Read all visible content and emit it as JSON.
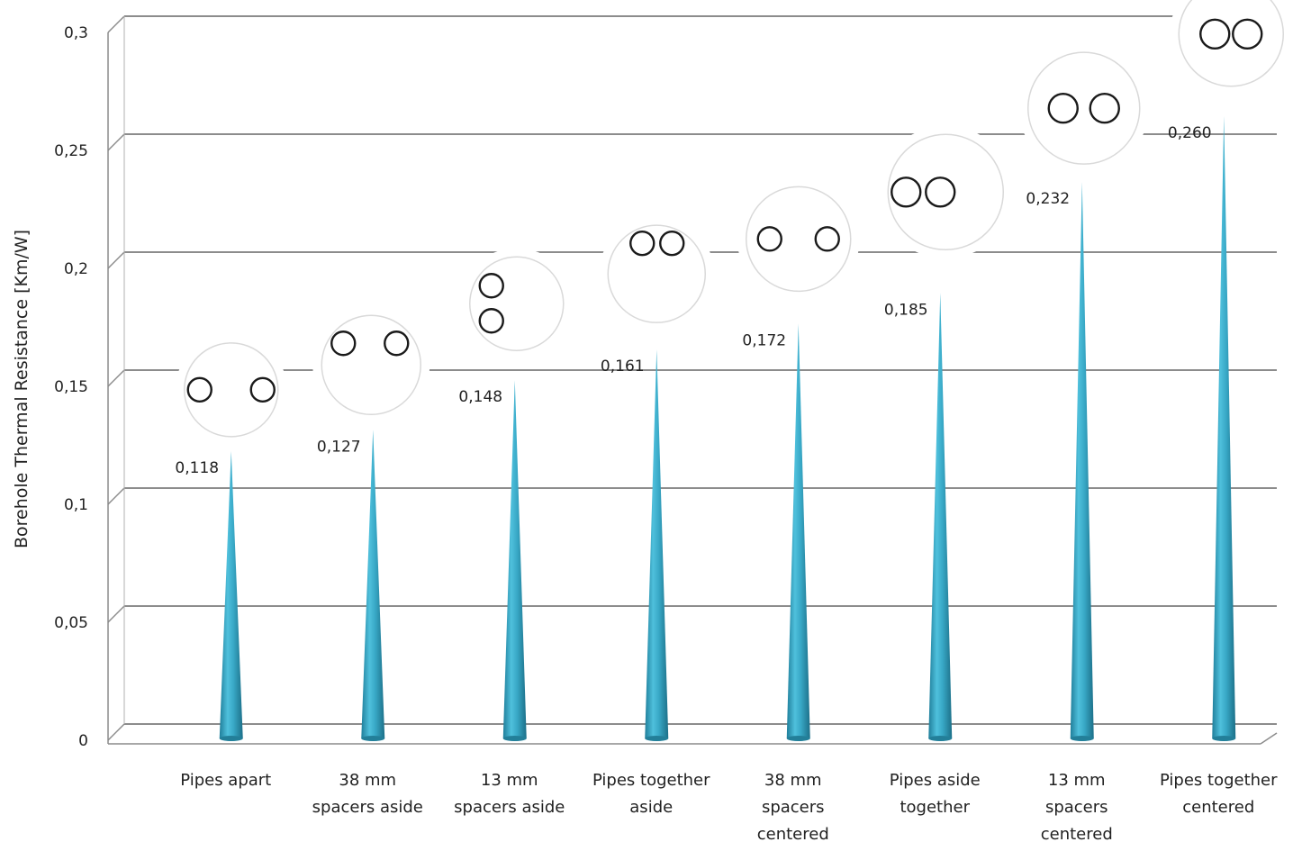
{
  "chart_data": {
    "type": "bar",
    "title": "",
    "xlabel": "",
    "ylabel": "Borehole Thermal Resistance [Km/W]",
    "ylim": [
      0,
      0.3
    ],
    "yticks": [
      "0",
      "0,05",
      "0,1",
      "0,15",
      "0,2",
      "0,25",
      "0,3"
    ],
    "grid": true,
    "bar_style": "3d-cone",
    "bar_color": "#3aa6c4",
    "categories": [
      [
        "Pipes apart"
      ],
      [
        "38 mm",
        "spacers aside"
      ],
      [
        "13 mm",
        "spacers aside"
      ],
      [
        "Pipes together",
        "aside"
      ],
      [
        "38 mm",
        "spacers",
        "centered"
      ],
      [
        "Pipes aside",
        "together"
      ],
      [
        "13 mm",
        "spacers",
        "centered"
      ],
      [
        "Pipes together",
        "centered"
      ]
    ],
    "values": [
      0.118,
      0.127,
      0.148,
      0.161,
      0.172,
      0.185,
      0.232,
      0.26
    ],
    "value_labels": [
      "0,118",
      "0,127",
      "0,148",
      "0,161",
      "0,172",
      "0,185",
      "0,232",
      "0,260"
    ],
    "pipe_configurations": [
      "pipes-apart-horizontal",
      "pipes-aside-horizontal",
      "pipes-aside-vertical",
      "pipes-touching-aside",
      "pipes-spaced-centered",
      "pipes-touching-upper-left",
      "pipes-spaced-centered-top",
      "pipes-touching-centered-top"
    ]
  }
}
